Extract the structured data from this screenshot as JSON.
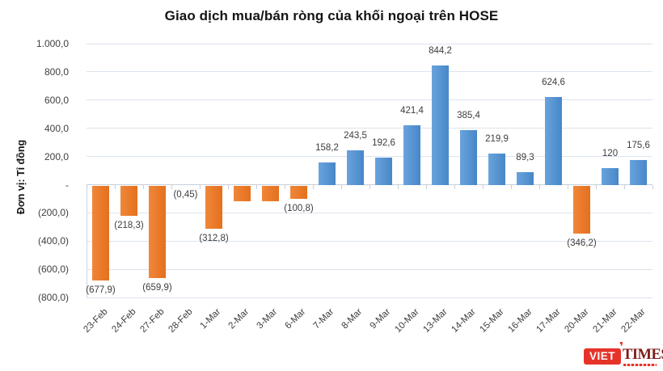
{
  "title": "Giao dịch mua/bán ròng của khối ngoại trên HOSE",
  "y_axis": {
    "title": "Đơn vị: Tỉ đồng",
    "ticks": [
      {
        "value": 1000,
        "label": "1.000,0"
      },
      {
        "value": 800,
        "label": "800,0"
      },
      {
        "value": 600,
        "label": "600,0"
      },
      {
        "value": 400,
        "label": "400,0"
      },
      {
        "value": 200,
        "label": "200,0"
      },
      {
        "value": 0,
        "label": "-"
      },
      {
        "value": -200,
        "label": "(200,0)"
      },
      {
        "value": -400,
        "label": "(400,0)"
      },
      {
        "value": -600,
        "label": "(600,0)"
      },
      {
        "value": -800,
        "label": "(800,0)"
      }
    ]
  },
  "chart_data": {
    "type": "bar",
    "title": "Giao dịch mua/bán ròng của khối ngoại trên HOSE",
    "ylabel": "Đơn vị: Tỉ đồng",
    "ylim": [
      -800,
      1000
    ],
    "grid": true,
    "legend": false,
    "unit": "Tỉ đồng",
    "categories": [
      "23-Feb",
      "24-Feb",
      "27-Feb",
      "28-Feb",
      "1-Mar",
      "2-Mar",
      "3-Mar",
      "6-Mar",
      "7-Mar",
      "8-Mar",
      "9-Mar",
      "10-Mar",
      "13-Mar",
      "14-Mar",
      "15-Mar",
      "16-Mar",
      "17-Mar",
      "20-Mar",
      "21-Mar",
      "22-Mar"
    ],
    "values": [
      -677.9,
      -218.3,
      -659.9,
      -0.45,
      -312.8,
      -115,
      -120,
      -100.8,
      158.2,
      243.5,
      192.6,
      421.4,
      844.2,
      385.4,
      219.9,
      89.3,
      624.6,
      -346.2,
      120,
      175.6
    ],
    "data_labels": [
      "(677,9)",
      "(218,3)",
      "(659,9)",
      "(0,45)",
      "(312,8)",
      "",
      "",
      "(100,8)",
      "158,2",
      "243,5",
      "192,6",
      "421,4",
      "844,2",
      "385,4",
      "219,9",
      "89,3",
      "624,6",
      "(346,2)",
      "120",
      "175,6"
    ],
    "colors": {
      "positive": "#4E94D3",
      "negative": "#ED7D31",
      "gridline": "#DDE4EE",
      "axis_line": "#C7CFDA",
      "label_text": "#3D3D3D",
      "title_text": "#141414"
    }
  },
  "logo": {
    "name": "VietTimes",
    "viet": "VIET",
    "times": "TIMES",
    "accent_icon": "apostrophe-accent",
    "red": "#E6332A",
    "dark_red": "#7E1D18"
  }
}
